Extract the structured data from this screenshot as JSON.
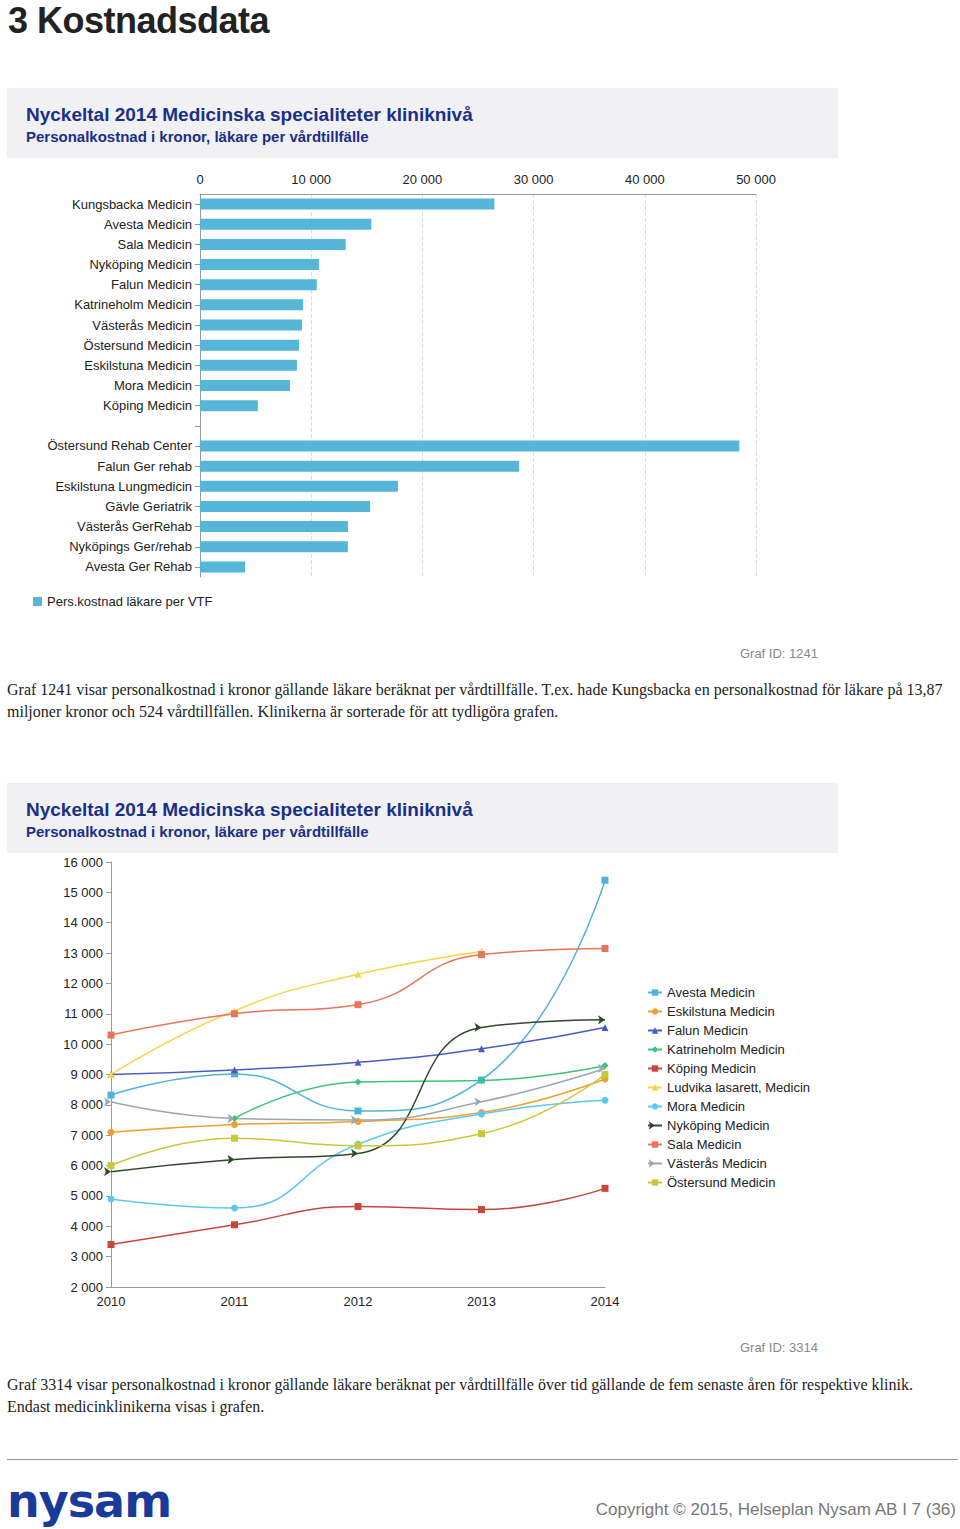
{
  "page": {
    "heading": "3  Kostnadsdata",
    "footer": {
      "logo": "nysam",
      "copyright": "Copyright © 2015, Helseplan Nysam AB  I  7 (36)"
    }
  },
  "chart_data": [
    {
      "type": "bar",
      "orientation": "horizontal",
      "title": "Nyckeltal 2014 Medicinska specialiteter kliniknivå",
      "subtitle": "Personalkostnad i kronor, läkare per vårdtillfälle",
      "annotations": [
        "Graf ID: 1241",
        "Graf 1241 visar personalkostnad i kronor gällande läkare beräknat per vårdtillfälle. T.ex. hade Kungsbacka en personalkostnad för läkare på 13,87 miljoner kronor och 524 vårdtillfällen. Klinikerna är sorterade för att tydligöra grafen."
      ],
      "categories": [
        "Kungsbacka Medicin",
        "Avesta Medicin",
        "Sala Medicin",
        "Nyköping Medicin",
        "Falun Medicin",
        "Katrineholm Medicin",
        "Västerås Medicin",
        "Östersund Medicin",
        "Eskilstuna Medicin",
        "Mora Medicin",
        "Köping Medicin",
        null,
        "Östersund Rehab Center",
        "Falun Ger rehab",
        "Eskilstuna Lungmedicin",
        "Gävle Geriatrik",
        "Västerås GerRehab",
        "Nyköpings Ger/rehab",
        "Avesta Ger Rehab"
      ],
      "series": [
        {
          "name": "Pers.kostnad läkare per VTF",
          "color": "#55b6da",
          "values": [
            26470,
            15400,
            13100,
            10700,
            10500,
            9260,
            9170,
            8900,
            8720,
            8090,
            5200,
            null,
            48500,
            28700,
            17800,
            15300,
            13300,
            13300,
            4050
          ]
        }
      ],
      "xlim": [
        0,
        50000
      ],
      "xticks": [
        0,
        {
          "value": 10000,
          "label": "10 000"
        },
        {
          "value": 20000,
          "label": "20 000"
        },
        {
          "value": 30000,
          "label": "30 000"
        },
        {
          "value": 40000,
          "label": "40 000"
        },
        {
          "value": 50000,
          "label": "50 000"
        }
      ],
      "grid": true,
      "legend": "bottom-left"
    },
    {
      "type": "line",
      "title": "Nyckeltal 2014 Medicinska specialiteter kliniknivå",
      "subtitle": "Personalkostnad i kronor, läkare per vårdtillfälle",
      "annotations": [
        "Graf ID: 3314",
        "Graf 3314 visar personalkostnad i kronor gällande läkare beräknat per vårdtillfälle över tid gällande de fem senaste åren för respektive klinik. Endast medicinklinikerna visas i grafen."
      ],
      "categories": [
        "2010",
        "2011",
        "2012",
        "2013",
        "2014"
      ],
      "series": [
        {
          "name": "Avesta Medicin",
          "color": "#4fb3d9",
          "marker": "square",
          "values": [
            8320,
            9020,
            7800,
            8820,
            15400
          ]
        },
        {
          "name": "Eskilstuna Medicin",
          "color": "#f0a030",
          "marker": "circle",
          "values": [
            7100,
            7350,
            7450,
            7750,
            8850
          ]
        },
        {
          "name": "Falun Medicin",
          "color": "#4a5bc4",
          "marker": "triangle",
          "values": [
            9000,
            9150,
            9400,
            9850,
            10550
          ]
        },
        {
          "name": "Katrineholm Medicin",
          "color": "#3cc47c",
          "marker": "diamond",
          "values": [
            null,
            7550,
            8750,
            8800,
            9300
          ]
        },
        {
          "name": "Köping Medicin",
          "color": "#c8463c",
          "marker": "square",
          "values": [
            3400,
            4050,
            4650,
            4550,
            5250
          ]
        },
        {
          "name": "Ludvika lasarett, Medicin",
          "color": "#f5d547",
          "marker": "triangle",
          "values": [
            9000,
            11100,
            12300,
            13050,
            null
          ]
        },
        {
          "name": "Mora Medicin",
          "color": "#5fc8f0",
          "marker": "circle",
          "values": [
            4900,
            4600,
            6700,
            7700,
            8150
          ]
        },
        {
          "name": "Nyköping Medicin",
          "color": "#2e4a2a",
          "marker": "arrow",
          "values": [
            5800,
            6200,
            6400,
            10550,
            10800
          ]
        },
        {
          "name": "Sala Medicin",
          "color": "#e8745a",
          "marker": "square",
          "values": [
            10300,
            11000,
            11300,
            12950,
            13150
          ]
        },
        {
          "name": "Västerås Medicin",
          "color": "#9aa8b0",
          "marker": "arrow",
          "values": [
            8100,
            7550,
            7500,
            8100,
            9200
          ]
        },
        {
          "name": "Östersund Medicin",
          "color": "#c8c838",
          "marker": "square",
          "values": [
            6000,
            6900,
            6650,
            7050,
            9000
          ]
        }
      ],
      "ylim": [
        2000,
        16000
      ],
      "yticks": [
        {
          "value": 2000,
          "label": "2 000"
        },
        {
          "value": 3000,
          "label": "3 000"
        },
        {
          "value": 4000,
          "label": "4 000"
        },
        {
          "value": 5000,
          "label": "5 000"
        },
        {
          "value": 6000,
          "label": "6 000"
        },
        {
          "value": 7000,
          "label": "7 000"
        },
        {
          "value": 8000,
          "label": "8 000"
        },
        {
          "value": 9000,
          "label": "9 000"
        },
        {
          "value": 10000,
          "label": "10 000"
        },
        {
          "value": 11000,
          "label": "11 000"
        },
        {
          "value": 12000,
          "label": "12 000"
        },
        {
          "value": 13000,
          "label": "13 000"
        },
        {
          "value": 14000,
          "label": "14 000"
        },
        {
          "value": 15000,
          "label": "15 000"
        },
        {
          "value": 16000,
          "label": "16 000"
        }
      ],
      "grid": false,
      "legend": "right"
    }
  ]
}
